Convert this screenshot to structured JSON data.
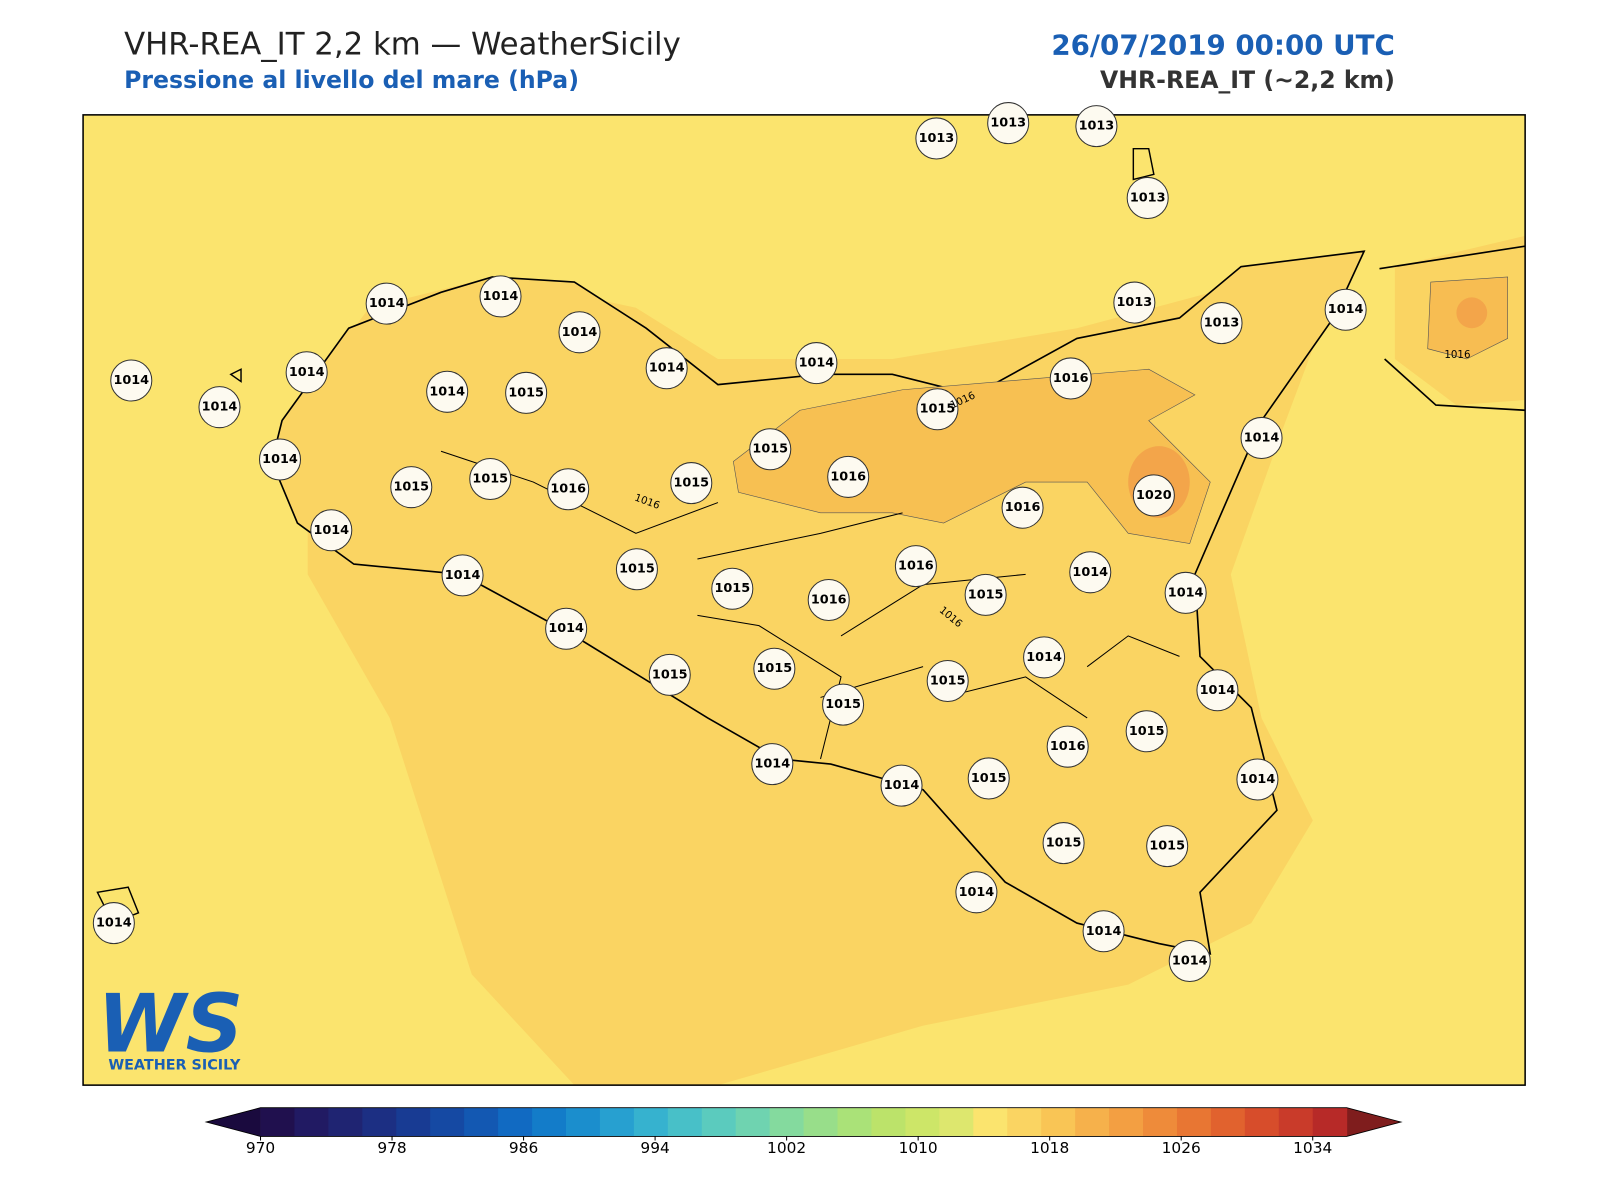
{
  "header": {
    "title": "VHR-REA_IT 2,2 km — WeatherSicily",
    "subtitle": "Pressione al livello del mare (hPa)",
    "date": "26/07/2019 00:00 UTC",
    "model": "VHR-REA_IT (~2,2 km)"
  },
  "stations": [
    1013,
    1013,
    1013,
    1013,
    1014,
    1014,
    1014,
    1013,
    1013,
    1014,
    1014,
    1014,
    1014,
    1014,
    1015,
    1014,
    1014,
    1016,
    1015,
    1014,
    1014,
    1015,
    1015,
    1015,
    1016,
    1015,
    1016,
    1016,
    1020,
    1014,
    1014,
    1015,
    1016,
    1014,
    1014,
    1015,
    1016,
    1015,
    1014,
    1014,
    1015,
    1015,
    1015,
    1014,
    1015,
    1015,
    1016,
    1014,
    1014,
    1015,
    1014,
    1015,
    1015,
    1014,
    1014,
    1014,
    1014
  ],
  "contour_labels": [
    1016,
    1016,
    1016,
    1016
  ],
  "logo": {
    "mark": "WS",
    "name": "WEATHER SICILY"
  },
  "colorbar": {
    "range": [
      970,
      1034
    ],
    "ticks": [
      970,
      978,
      986,
      994,
      1002,
      1010,
      1018,
      1026,
      1034
    ],
    "colors": [
      "#20104e",
      "#211a63",
      "#1f2472",
      "#1c2f83",
      "#183b93",
      "#1549a3",
      "#1358b2",
      "#116ac2",
      "#137cc9",
      "#1b8ecd",
      "#27a0d0",
      "#36b2cf",
      "#48c0c8",
      "#5bcbbe",
      "#6fd3b0",
      "#84da9e",
      "#98de8a",
      "#aae278",
      "#bce36a",
      "#cde668",
      "#dde76e",
      "#fbe46e",
      "#fad462",
      "#f9c555",
      "#f6b14b",
      "#f39f42",
      "#ee8b3a",
      "#e87633",
      "#e1622e",
      "#d74d2b",
      "#c93b2a",
      "#b72a28"
    ],
    "under_color": "#1a0a3e",
    "over_color": "#7f1d1d"
  }
}
